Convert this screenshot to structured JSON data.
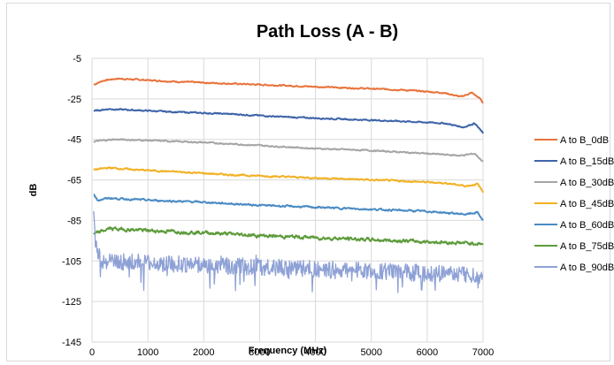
{
  "chart_data": {
    "type": "line",
    "title": "Path Loss (A - B)",
    "xlabel": "Frequency (MHz)",
    "ylabel": "dB",
    "xlim": [
      0,
      7000
    ],
    "ylim": [
      -145,
      -5
    ],
    "x_ticks": [
      0,
      1000,
      2000,
      3000,
      4000,
      5000,
      6000,
      7000
    ],
    "y_ticks": [
      -5,
      -25,
      -45,
      -65,
      -85,
      -105,
      -125,
      -145
    ],
    "grid": true,
    "legend_position": "right",
    "series": [
      {
        "name": "A to B_0dB",
        "color": "#e8733a",
        "noise": 0.6,
        "points": [
          [
            30,
            -18
          ],
          [
            200,
            -16
          ],
          [
            450,
            -15
          ],
          [
            800,
            -15.5
          ],
          [
            1500,
            -16.5
          ],
          [
            2500,
            -17.5
          ],
          [
            3500,
            -18.5
          ],
          [
            4500,
            -19.5
          ],
          [
            5500,
            -20.5
          ],
          [
            6300,
            -22
          ],
          [
            6600,
            -24
          ],
          [
            6800,
            -22
          ],
          [
            6950,
            -25
          ],
          [
            7000,
            -27
          ]
        ]
      },
      {
        "name": "A to B_15dB",
        "color": "#3d64a8",
        "noise": 0.6,
        "points": [
          [
            30,
            -31
          ],
          [
            300,
            -30
          ],
          [
            700,
            -30.5
          ],
          [
            1500,
            -31.5
          ],
          [
            2500,
            -32.5
          ],
          [
            3500,
            -34
          ],
          [
            4500,
            -35
          ],
          [
            5500,
            -36
          ],
          [
            6300,
            -37
          ],
          [
            6650,
            -39
          ],
          [
            6850,
            -37
          ],
          [
            7000,
            -42
          ]
        ]
      },
      {
        "name": "A to B_30dB",
        "color": "#a5a5a5",
        "noise": 0.6,
        "points": [
          [
            30,
            -46
          ],
          [
            400,
            -45
          ],
          [
            1000,
            -45.5
          ],
          [
            2000,
            -46.5
          ],
          [
            3000,
            -48
          ],
          [
            4000,
            -49.5
          ],
          [
            5000,
            -50.5
          ],
          [
            6000,
            -52
          ],
          [
            6600,
            -53
          ],
          [
            6850,
            -52
          ],
          [
            7000,
            -56
          ]
        ]
      },
      {
        "name": "A to B_45dB",
        "color": "#f2b123",
        "noise": 0.7,
        "points": [
          [
            30,
            -60
          ],
          [
            300,
            -59
          ],
          [
            800,
            -60
          ],
          [
            1500,
            -61
          ],
          [
            2500,
            -62.5
          ],
          [
            3500,
            -63.5
          ],
          [
            4500,
            -64.5
          ],
          [
            5500,
            -65.5
          ],
          [
            6300,
            -66.5
          ],
          [
            6700,
            -68
          ],
          [
            6900,
            -67
          ],
          [
            7000,
            -71
          ]
        ]
      },
      {
        "name": "A to B_60dB",
        "color": "#4a8bc4",
        "noise": 0.8,
        "points": [
          [
            30,
            -72
          ],
          [
            100,
            -75
          ],
          [
            300,
            -74
          ],
          [
            1000,
            -75
          ],
          [
            2000,
            -76
          ],
          [
            3000,
            -77.5
          ],
          [
            4000,
            -78.5
          ],
          [
            5000,
            -79.5
          ],
          [
            6000,
            -80.5
          ],
          [
            6700,
            -82
          ],
          [
            6900,
            -81
          ],
          [
            7000,
            -85
          ]
        ]
      },
      {
        "name": "A to B_75dB",
        "color": "#5e9b3c",
        "noise": 1.6,
        "points": [
          [
            30,
            -92
          ],
          [
            300,
            -89
          ],
          [
            1000,
            -90
          ],
          [
            2000,
            -91
          ],
          [
            3000,
            -92.5
          ],
          [
            4000,
            -93.5
          ],
          [
            5000,
            -94.5
          ],
          [
            6000,
            -95.5
          ],
          [
            7000,
            -96.5
          ]
        ]
      },
      {
        "name": "A to B_90dB",
        "color": "#8ea1d6",
        "noise": 7,
        "points": [
          [
            30,
            -82
          ],
          [
            60,
            -95
          ],
          [
            150,
            -105
          ],
          [
            1000,
            -106
          ],
          [
            2000,
            -107
          ],
          [
            3000,
            -108
          ],
          [
            4000,
            -109
          ],
          [
            5000,
            -110
          ],
          [
            6000,
            -111
          ],
          [
            7000,
            -112
          ]
        ]
      }
    ]
  }
}
